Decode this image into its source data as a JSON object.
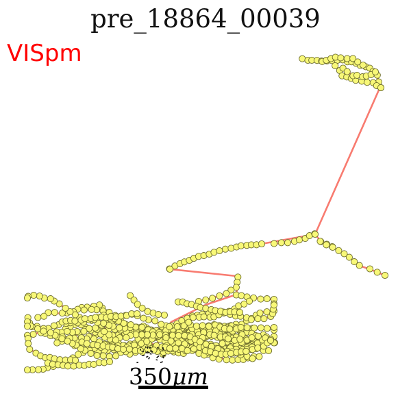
{
  "figure": {
    "title": "pre_18864_00039",
    "region_label": "VISpm",
    "scale_value": "350",
    "scale_unit": "μm"
  },
  "colors": {
    "region": "#ff0000",
    "axon_line": "#f87b70",
    "node_fill": "#f8f878",
    "node_stroke": "#6e6e2e",
    "scalebar": "#000000"
  }
}
